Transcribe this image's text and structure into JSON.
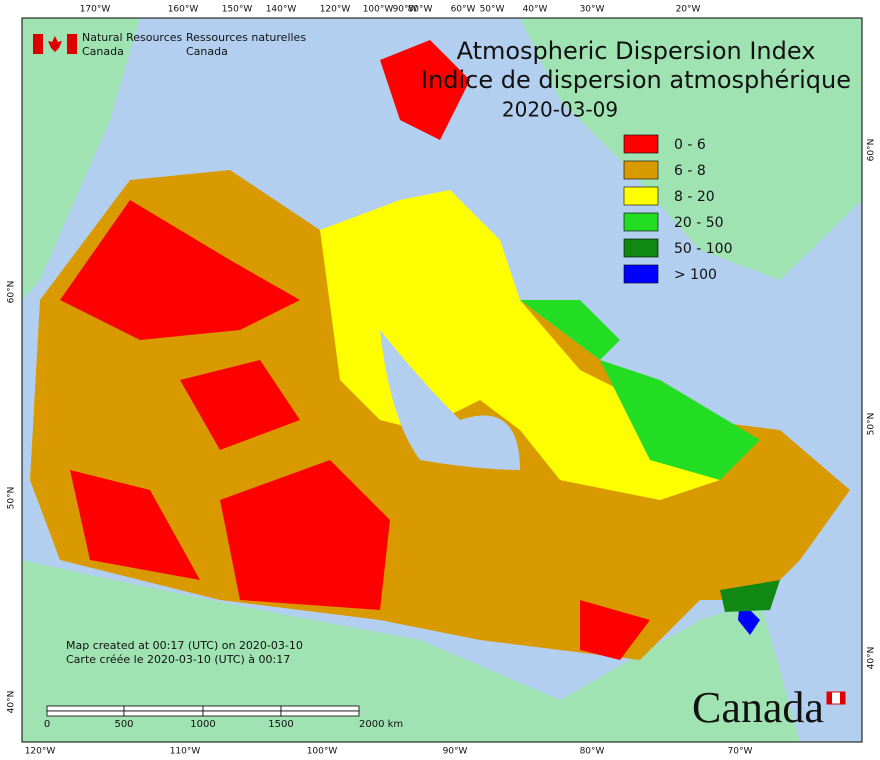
{
  "header": {
    "agency_en": [
      "Natural Resources",
      "Canada"
    ],
    "agency_fr": [
      "Ressources naturelles",
      "Canada"
    ]
  },
  "title": [
    "Atmospheric Dispersion Index",
    "Indice de dispersion atmosphérique"
  ],
  "date": "2020-03-09",
  "legend": [
    {
      "label": "0 - 6",
      "color": "#ff0000"
    },
    {
      "label": "6 - 8",
      "color": "#d99a00"
    },
    {
      "label": "8 - 20",
      "color": "#ffff00"
    },
    {
      "label": "20 - 50",
      "color": "#22dd22"
    },
    {
      "label": "50 - 100",
      "color": "#118811"
    },
    {
      "label": "> 100",
      "color": "#0000ff"
    }
  ],
  "credits": [
    "Map created at 00:17 (UTC) on 2020-03-10",
    "Carte créée le 2020-03-10 (UTC) à 00:17"
  ],
  "top_axis": [
    "170°W",
    "160°W",
    "150°W",
    "140°W",
    "120°W",
    "100°W",
    "90°W",
    "80°W",
    "60°W",
    "50°W",
    "40°W",
    "30°W",
    "20°W"
  ],
  "bottom_axis": [
    "120°W",
    "110°W",
    "100°W",
    "90°W",
    "80°W",
    "70°W"
  ],
  "left_axis": [
    "60°N",
    "50°N",
    "40°N"
  ],
  "right_axis": [
    "60°N",
    "50°N",
    "40°N"
  ],
  "scale": [
    "0",
    "500",
    "1000",
    "1500",
    "2000 km"
  ],
  "wordmark": "Canada"
}
